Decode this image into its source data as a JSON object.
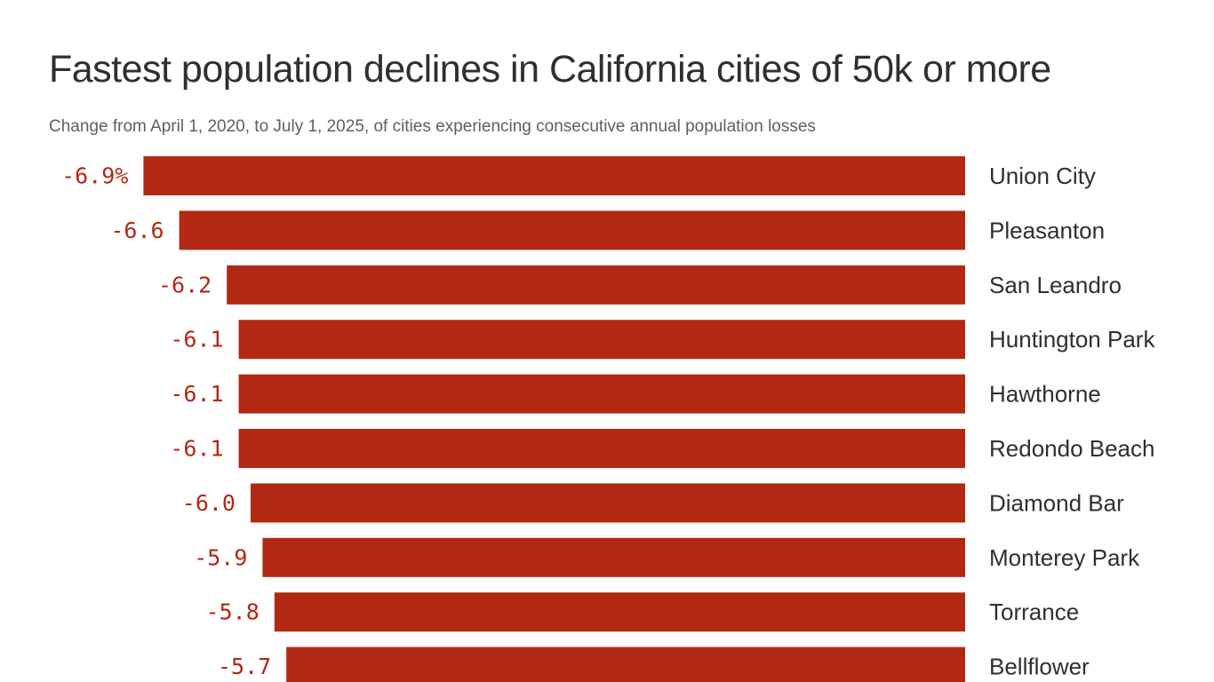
{
  "title": "Fastest population declines in California cities of 50k or more",
  "subtitle": "Change from April 1, 2020, to July 1, 2025, of cities experiencing consecutive annual population losses",
  "colors": {
    "bar": "#b22812",
    "value_label": "#b22812",
    "category_label": "#2f2f2f",
    "title": "#2f2f2f",
    "subtitle": "#5f5f5f"
  },
  "chart_data": {
    "type": "bar",
    "orientation": "horizontal",
    "categories": [
      "Union City",
      "Pleasanton",
      "San Leandro",
      "Huntington Park",
      "Hawthorne",
      "Redondo Beach",
      "Diamond Bar",
      "Monterey Park",
      "Torrance",
      "Bellflower"
    ],
    "values": [
      -6.9,
      -6.6,
      -6.2,
      -6.1,
      -6.1,
      -6.1,
      -6.0,
      -5.9,
      -5.8,
      -5.7
    ],
    "value_labels": [
      "-6.9%",
      "-6.6",
      "-6.2",
      "-6.1",
      "-6.1",
      "-6.1",
      "-6.0",
      "-5.9",
      "-5.8",
      "-5.7"
    ],
    "title": "Fastest population declines in California cities of 50k or more",
    "subtitle": "Change from April 1, 2020, to July 1, 2025, of cities experiencing consecutive annual population losses",
    "grid": false,
    "legend": "none"
  }
}
